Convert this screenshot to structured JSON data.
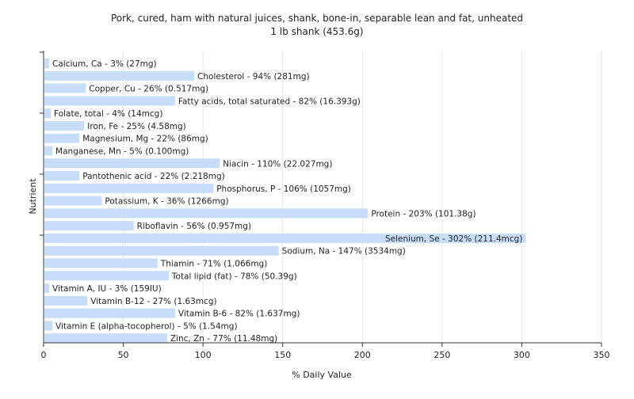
{
  "chart_data": {
    "type": "bar",
    "orientation": "horizontal",
    "title": "Pork, cured, ham with natural juices, shank, bone-in, separable lean and fat, unheated",
    "subtitle": "1 lb shank (453.6g)",
    "xlabel": "% Daily Value",
    "ylabel": "Nutrient",
    "xlim": [
      0,
      350
    ],
    "xticks": [
      "0",
      "50",
      "100",
      "150",
      "200",
      "250",
      "300",
      "350"
    ],
    "grid": true,
    "bar_color": "#c6dcf7",
    "categories": [
      "Calcium, Ca",
      "Cholesterol",
      "Copper, Cu",
      "Fatty acids, total saturated",
      "Folate, total",
      "Iron, Fe",
      "Magnesium, Mg",
      "Manganese, Mn",
      "Niacin",
      "Pantothenic acid",
      "Phosphorus, P",
      "Potassium, K",
      "Protein",
      "Riboflavin",
      "Selenium, Se",
      "Sodium, Na",
      "Thiamin",
      "Total lipid (fat)",
      "Vitamin A, IU",
      "Vitamin B-12",
      "Vitamin B-6",
      "Vitamin E (alpha-tocopherol)",
      "Zinc, Zn"
    ],
    "values": [
      3,
      94,
      26,
      82,
      4,
      25,
      22,
      5,
      110,
      22,
      106,
      36,
      203,
      56,
      302,
      147,
      71,
      78,
      3,
      27,
      82,
      5,
      77
    ],
    "labels": [
      "Calcium, Ca - 3% (27mg)",
      "Cholesterol - 94% (281mg)",
      "Copper, Cu - 26% (0.517mg)",
      "Fatty acids, total saturated - 82% (16.393g)",
      "Folate, total - 4% (14mcg)",
      "Iron, Fe - 25% (4.58mg)",
      "Magnesium, Mg - 22% (86mg)",
      "Manganese, Mn - 5% (0.100mg)",
      "Niacin - 110% (22.027mg)",
      "Pantothenic acid - 22% (2.218mg)",
      "Phosphorus, P - 106% (1057mg)",
      "Potassium, K - 36% (1266mg)",
      "Protein - 203% (101.38g)",
      "Riboflavin - 56% (0.957mg)",
      "Selenium, Se - 302% (211.4mcg)",
      "Sodium, Na - 147% (3534mg)",
      "Thiamin - 71% (1.066mg)",
      "Total lipid (fat) - 78% (50.39g)",
      "Vitamin A, IU - 3% (159IU)",
      "Vitamin B-12 - 27% (1.63mcg)",
      "Vitamin B-6 - 82% (1.637mg)",
      "Vitamin E (alpha-tocopherol) - 5% (1.54mg)",
      "Zinc, Zn - 77% (11.48mg)"
    ]
  }
}
